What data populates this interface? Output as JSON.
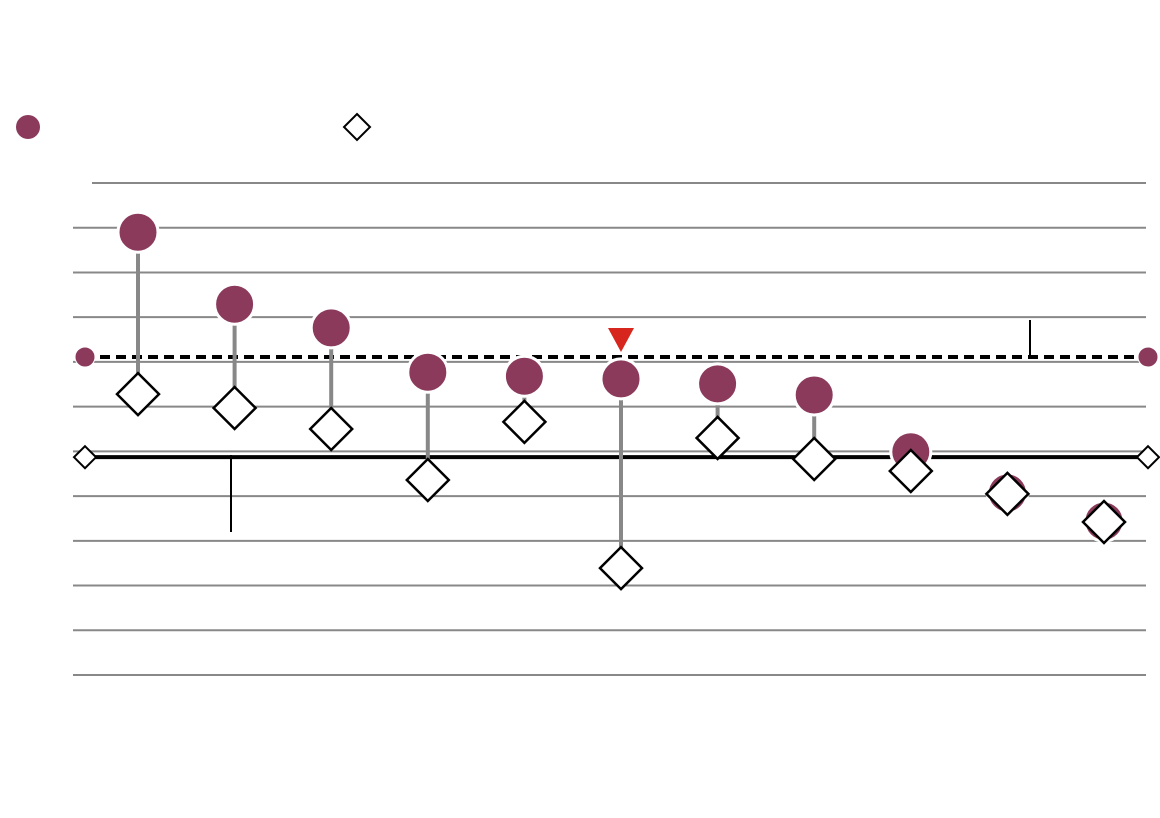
{
  "chart_data": {
    "type": "dumbbell",
    "categories": [
      null,
      null,
      null,
      null,
      null,
      null,
      null,
      null,
      null,
      null,
      null
    ],
    "series": [
      {
        "marker": "circle",
        "color": "#8b3a5c",
        "values": [
          9.9,
          8.29,
          7.76,
          6.77,
          6.68,
          6.62,
          6.51,
          6.26,
          4.99,
          4.07,
          3.44
        ]
      },
      {
        "marker": "diamond",
        "color": "#ffffff",
        "values": [
          6.28,
          5.97,
          5.5,
          4.36,
          5.66,
          2.39,
          5.3,
          4.83,
          4.56,
          4.05,
          3.42
        ]
      }
    ],
    "reference_lines": [
      {
        "value": 7.11,
        "style": "dashed",
        "color": "#000000"
      },
      {
        "value": 4.87,
        "style": "solid",
        "color": "#000000"
      }
    ],
    "ylim": [
      0,
      11
    ],
    "yticks": [
      0,
      1,
      2,
      3,
      4,
      5,
      6,
      7,
      8,
      9,
      10,
      11
    ],
    "grid": true
  }
}
